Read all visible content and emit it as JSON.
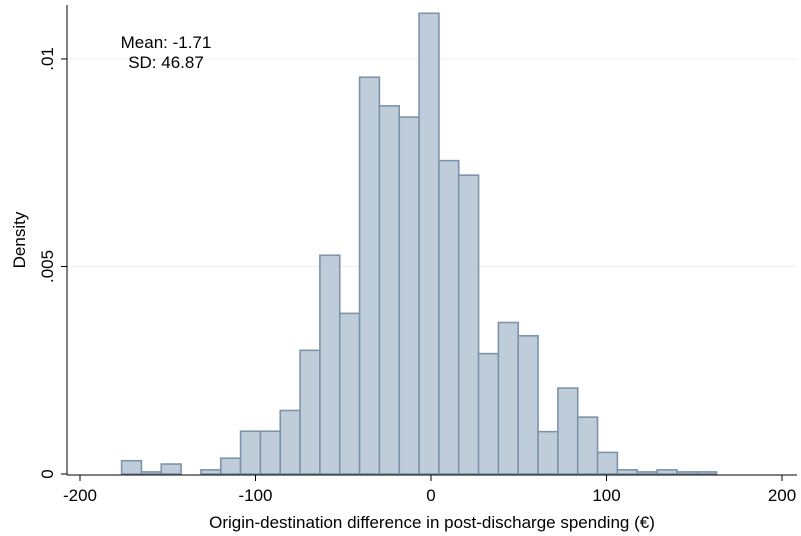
{
  "chart_data": {
    "type": "bar",
    "subtype": "histogram",
    "xlabel": "Origin-destination difference in post-discharge spending (€)",
    "ylabel": "Density",
    "xlim": [
      -200,
      200
    ],
    "ylim": [
      0,
      0.0113
    ],
    "x_ticks": [
      -200,
      -100,
      0,
      100,
      200
    ],
    "x_tick_labels": [
      "-200",
      "-100",
      "0",
      "100",
      "200"
    ],
    "y_ticks": [
      0,
      0.005,
      0.01
    ],
    "y_tick_labels": [
      "0",
      ".005",
      ".01"
    ],
    "grid": "horizontal",
    "bin_width": 11.3,
    "bins": [
      {
        "x0": -176.3,
        "value": 0.00032
      },
      {
        "x0": -165.0,
        "value": 5e-05
      },
      {
        "x0": -153.7,
        "value": 0.00024
      },
      {
        "x0": -142.4,
        "value": 0.0
      },
      {
        "x0": -131.1,
        "value": 0.0001
      },
      {
        "x0": -119.8,
        "value": 0.00038
      },
      {
        "x0": -108.5,
        "value": 0.00103
      },
      {
        "x0": -97.2,
        "value": 0.00103
      },
      {
        "x0": -85.9,
        "value": 0.00153
      },
      {
        "x0": -74.6,
        "value": 0.00298
      },
      {
        "x0": -63.3,
        "value": 0.00527
      },
      {
        "x0": -52.0,
        "value": 0.00387
      },
      {
        "x0": -40.7,
        "value": 0.00956
      },
      {
        "x0": -29.4,
        "value": 0.00887
      },
      {
        "x0": -18.1,
        "value": 0.0086
      },
      {
        "x0": -6.8,
        "value": 0.0111
      },
      {
        "x0": 4.5,
        "value": 0.00755
      },
      {
        "x0": 15.8,
        "value": 0.0072
      },
      {
        "x0": 27.1,
        "value": 0.0029
      },
      {
        "x0": 38.4,
        "value": 0.00365
      },
      {
        "x0": 49.7,
        "value": 0.00333
      },
      {
        "x0": 61.0,
        "value": 0.00102
      },
      {
        "x0": 72.3,
        "value": 0.00207
      },
      {
        "x0": 83.6,
        "value": 0.00137
      },
      {
        "x0": 94.9,
        "value": 0.00052
      },
      {
        "x0": 106.2,
        "value": 0.0001
      },
      {
        "x0": 117.5,
        "value": 5e-05
      },
      {
        "x0": 128.8,
        "value": 0.0001
      },
      {
        "x0": 140.1,
        "value": 5e-05
      },
      {
        "x0": 151.4,
        "value": 5e-05
      }
    ],
    "annotations": [
      "Mean: -1.71",
      "SD: 46.87"
    ],
    "colors": {
      "bar_fill": "#bfcddb",
      "bar_stroke": "#7d93a8",
      "grid": "#eaf2f3",
      "axis": "#000000"
    }
  }
}
